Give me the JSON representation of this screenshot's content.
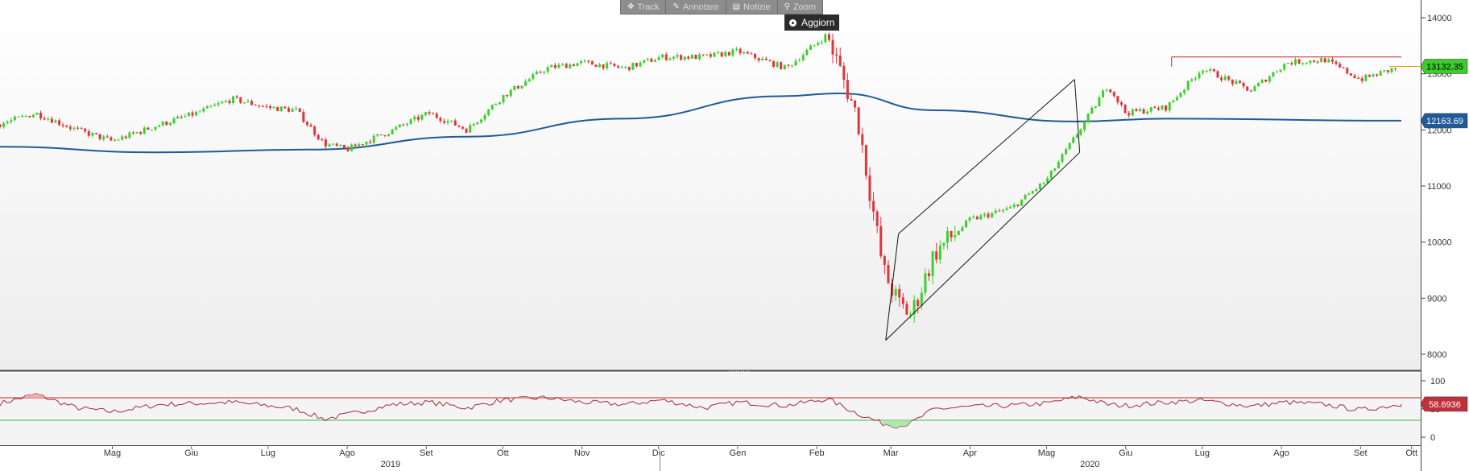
{
  "toolbar": {
    "track_label": "Track",
    "annotate_label": "Annotare",
    "news_label": "Notizie",
    "zoom_label": "Zoom",
    "refresh_label": "Aggiorn"
  },
  "colors": {
    "up": "#3cd12b",
    "down": "#e0353b",
    "ma": "#1f5a99",
    "rsi_line": "#a52a3a",
    "rsi_upper": "#cc2222",
    "rsi_lower": "#33bb33",
    "channel": "#111111",
    "resistance": "#cc2222",
    "badge_price": "#3ccc2c",
    "badge_ma": "#1f5a99",
    "badge_rsi": "#c0303a"
  },
  "chart_data": [
    {
      "type": "candlestick",
      "y_ticks": [
        14000,
        13000,
        12000,
        11000,
        10000,
        9000,
        8000
      ],
      "ylim": [
        7800,
        14300
      ],
      "series": [
        {
          "name": "price",
          "x": [
            "2019-04-01",
            "2019-04-15",
            "2019-05-01",
            "2019-05-15",
            "2019-06-03",
            "2019-06-17",
            "2019-07-01",
            "2019-07-15",
            "2019-07-26",
            "2019-08-06",
            "2019-08-15",
            "2019-09-02",
            "2019-09-16",
            "2019-10-01",
            "2019-10-15",
            "2019-11-01",
            "2019-11-15",
            "2019-12-02",
            "2019-12-16",
            "2020-01-02",
            "2020-01-15",
            "2020-02-03",
            "2020-02-19",
            "2020-03-02",
            "2020-03-12",
            "2020-03-18",
            "2020-03-23",
            "2020-04-01",
            "2020-04-15",
            "2020-05-01",
            "2020-05-15",
            "2020-05-28",
            "2020-06-08",
            "2020-06-15",
            "2020-07-01",
            "2020-07-15",
            "2020-08-03",
            "2020-08-17",
            "2020-09-01",
            "2020-09-15",
            "2020-10-01"
          ],
          "values": [
            12100,
            12300,
            12000,
            11800,
            12100,
            12300,
            12550,
            12400,
            12350,
            11750,
            11650,
            12000,
            12300,
            12000,
            12600,
            13100,
            13200,
            13100,
            13300,
            13300,
            13400,
            13100,
            13700,
            12200,
            9500,
            8900,
            8700,
            9800,
            10400,
            10600,
            11100,
            12000,
            12800,
            12300,
            12400,
            13100,
            12700,
            13200,
            13250,
            12900,
            13132.35
          ]
        },
        {
          "name": "moving-average",
          "x": [
            "2019-04-01",
            "2019-06-01",
            "2019-08-01",
            "2019-10-01",
            "2019-12-01",
            "2020-02-01",
            "2020-02-24",
            "2020-04-01",
            "2020-05-26",
            "2020-07-01",
            "2020-10-01"
          ],
          "values": [
            11700,
            11600,
            11650,
            11880,
            12200,
            12600,
            12650,
            12350,
            12150,
            12200,
            12163.69
          ]
        }
      ],
      "channel": [
        {
          "x": [
            "2020-03-13",
            "2020-05-28"
          ],
          "values": [
            8250,
            11600
          ]
        },
        {
          "x": [
            "2020-03-18",
            "2020-05-26"
          ],
          "values": [
            10150,
            12900
          ]
        }
      ],
      "resistance": {
        "x": [
          "2020-07-03",
          "2020-10-01"
        ],
        "value": 13300
      },
      "last_price_label": "13132.35",
      "ma_label": "12163.69"
    },
    {
      "type": "line",
      "y_ticks": [
        100,
        50,
        0
      ],
      "ylim": [
        -5,
        108
      ],
      "upper_level": 70,
      "lower_level": 30,
      "series": [
        {
          "name": "rsi",
          "x": [
            "2019-04-01",
            "2019-04-15",
            "2019-05-01",
            "2019-05-15",
            "2019-06-03",
            "2019-06-17",
            "2019-07-01",
            "2019-07-15",
            "2019-07-26",
            "2019-08-06",
            "2019-08-15",
            "2019-09-02",
            "2019-09-16",
            "2019-10-01",
            "2019-10-15",
            "2019-11-01",
            "2019-11-15",
            "2019-12-02",
            "2019-12-16",
            "2020-01-02",
            "2020-01-15",
            "2020-02-03",
            "2020-02-19",
            "2020-03-02",
            "2020-03-12",
            "2020-03-18",
            "2020-03-23",
            "2020-04-01",
            "2020-04-15",
            "2020-05-01",
            "2020-05-15",
            "2020-05-28",
            "2020-06-08",
            "2020-06-15",
            "2020-07-01",
            "2020-07-15",
            "2020-08-03",
            "2020-08-17",
            "2020-09-01",
            "2020-09-15",
            "2020-10-01"
          ],
          "values": [
            60,
            76,
            52,
            45,
            58,
            60,
            62,
            56,
            50,
            32,
            40,
            58,
            62,
            52,
            66,
            70,
            62,
            58,
            66,
            52,
            62,
            56,
            68,
            42,
            24,
            20,
            25,
            50,
            54,
            56,
            60,
            72,
            58,
            56,
            62,
            65,
            55,
            62,
            58,
            48,
            58.6936
          ]
        }
      ],
      "last_value_label": "58.6936"
    }
  ],
  "x_axis": {
    "months": [
      {
        "label": "Mag",
        "date": "2019-05-15"
      },
      {
        "label": "Giu",
        "date": "2019-06-15"
      },
      {
        "label": "Lug",
        "date": "2019-07-15"
      },
      {
        "label": "Ago",
        "date": "2019-08-15"
      },
      {
        "label": "Set",
        "date": "2019-09-15"
      },
      {
        "label": "Ott",
        "date": "2019-10-15"
      },
      {
        "label": "Nov",
        "date": "2019-11-15"
      },
      {
        "label": "Dic",
        "date": "2019-12-15"
      },
      {
        "label": "Gen",
        "date": "2020-01-15"
      },
      {
        "label": "Feb",
        "date": "2020-02-15"
      },
      {
        "label": "Mar",
        "date": "2020-03-15"
      },
      {
        "label": "Apr",
        "date": "2020-04-15"
      },
      {
        "label": "Mag",
        "date": "2020-05-15"
      },
      {
        "label": "Giu",
        "date": "2020-06-15"
      },
      {
        "label": "Lug",
        "date": "2020-07-15"
      },
      {
        "label": "Ago",
        "date": "2020-08-15"
      },
      {
        "label": "Set",
        "date": "2020-09-15"
      },
      {
        "label": "Ott",
        "date": "2020-10-05"
      }
    ],
    "years": [
      {
        "label": "2019",
        "date": "2019-09-01"
      },
      {
        "label": "2020",
        "date": "2020-06-01"
      }
    ]
  }
}
